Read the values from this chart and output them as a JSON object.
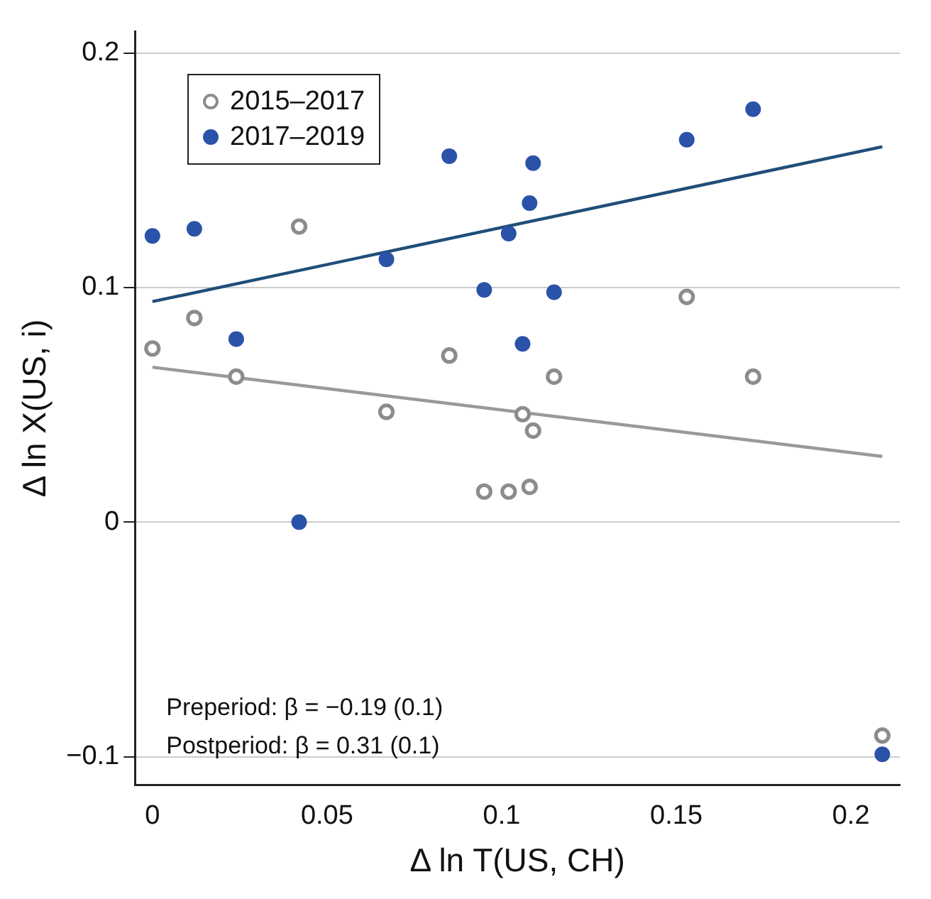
{
  "chart_data": {
    "type": "scatter",
    "xlabel": "Δ ln T(US, CH)",
    "ylabel": "Δ ln X(US, i)",
    "xlim": [
      -0.005,
      0.214
    ],
    "xticks": [
      0,
      0.05,
      0.1,
      0.15,
      0.2
    ],
    "ylim": [
      -0.112,
      0.209
    ],
    "yticks": [
      -0.1,
      0,
      0.1,
      0.2
    ],
    "grid": "y",
    "legend": "top left",
    "marker": "circle",
    "annotations": [
      "Preperiod: β = −0.19 (0.1)",
      "Postperiod: β = 0.31 (0.1)"
    ],
    "series": [
      {
        "name": "2015–2017",
        "color": "#8c8c8c",
        "x": [
          0,
          0.012,
          0.024,
          0.042,
          0.067,
          0.085,
          0.095,
          0.102,
          0.108,
          0.106,
          0.109,
          0.115,
          0.153,
          0.172,
          0.209
        ],
        "values": [
          0.074,
          0.087,
          0.062,
          0.126,
          0.047,
          0.071,
          0.013,
          0.013,
          0.015,
          0.046,
          0.039,
          0.062,
          0.096,
          0.062,
          -0.091
        ]
      },
      {
        "name": "2017–2019",
        "color": "#2a52a8",
        "x": [
          0,
          0.012,
          0.024,
          0.042,
          0.067,
          0.085,
          0.095,
          0.102,
          0.106,
          0.108,
          0.109,
          0.115,
          0.153,
          0.172,
          0.209
        ],
        "values": [
          0.122,
          0.125,
          0.078,
          0,
          0.112,
          0.156,
          0.099,
          0.123,
          0.076,
          0.136,
          0.153,
          0.098,
          0.163,
          0.176,
          -0.099
        ]
      },
      {
        "type": "line",
        "color": "#999999",
        "marker": "none",
        "x": [
          0,
          0.209
        ],
        "values": [
          0.066,
          0.028
        ]
      },
      {
        "type": "line",
        "color": "#1f4e79",
        "marker": "none",
        "x": [
          0,
          0.209
        ],
        "values": [
          0.094,
          0.16
        ]
      }
    ]
  }
}
